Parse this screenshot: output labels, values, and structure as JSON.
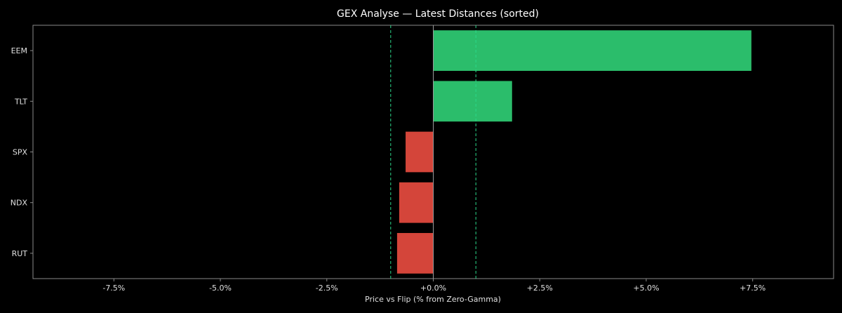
{
  "chart_data": {
    "type": "bar",
    "orientation": "horizontal",
    "title": "GEX Analyse — Latest Distances (sorted)",
    "xlabel": "Price vs Flip (% from Zero-Gamma)",
    "ylabel": "",
    "categories": [
      "EEM",
      "TLT",
      "SPX",
      "NDX",
      "RUT"
    ],
    "values": [
      7.47,
      1.85,
      -0.65,
      -0.8,
      -0.85
    ],
    "xlim": [
      -9.4,
      9.4
    ],
    "xticks": [
      -7.5,
      -5.0,
      -2.5,
      0.0,
      2.5,
      5.0,
      7.5
    ],
    "xtick_labels": [
      "-7.5%",
      "-5.0%",
      "-2.5%",
      "+0.0%",
      "+2.5%",
      "+5.0%",
      "+7.5%"
    ],
    "reference_lines": [
      -1.0,
      1.0
    ],
    "grid": false,
    "colors": {
      "positive": "#2bbd6b",
      "negative": "#d4453a",
      "reference": "#2bd98a",
      "zero_line": "#9a9a9a",
      "frame": "#8a8a8a",
      "background": "#000000"
    }
  }
}
